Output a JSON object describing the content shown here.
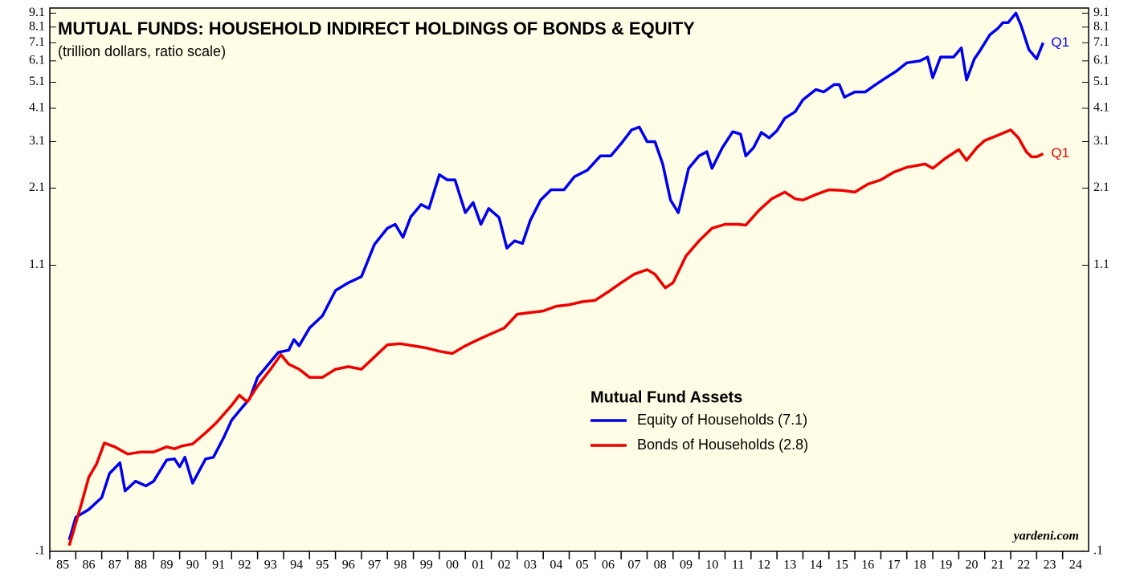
{
  "chart_data": {
    "type": "line",
    "title": "MUTUAL FUNDS: HOUSEHOLD INDIRECT HOLDINGS OF BONDS & EQUITY",
    "subtitle": "(trillion dollars, ratio scale)",
    "legend_title": "Mutual Fund Assets",
    "source": "yardeni.com",
    "log_scale": true,
    "xlim": [
      1985,
      2025
    ],
    "ylim": [
      0.1,
      9.5
    ],
    "yticks": [
      {
        "value": 0.1,
        "label": ".1"
      },
      1.1,
      2.1,
      3.1,
      4.1,
      5.1,
      6.1,
      7.1,
      8.1,
      9.1
    ],
    "xticks": [
      {
        "value": 1985,
        "label": "85"
      },
      {
        "value": 1986,
        "label": "86"
      },
      {
        "value": 1987,
        "label": "87"
      },
      {
        "value": 1988,
        "label": "88"
      },
      {
        "value": 1989,
        "label": "89"
      },
      {
        "value": 1990,
        "label": "90"
      },
      {
        "value": 1991,
        "label": "91"
      },
      {
        "value": 1992,
        "label": "92"
      },
      {
        "value": 1993,
        "label": "93"
      },
      {
        "value": 1994,
        "label": "94"
      },
      {
        "value": 1995,
        "label": "95"
      },
      {
        "value": 1996,
        "label": "96"
      },
      {
        "value": 1997,
        "label": "97"
      },
      {
        "value": 1998,
        "label": "98"
      },
      {
        "value": 1999,
        "label": "99"
      },
      {
        "value": 2000,
        "label": "00"
      },
      {
        "value": 2001,
        "label": "01"
      },
      {
        "value": 2002,
        "label": "02"
      },
      {
        "value": 2003,
        "label": "03"
      },
      {
        "value": 2004,
        "label": "04"
      },
      {
        "value": 2005,
        "label": "05"
      },
      {
        "value": 2006,
        "label": "06"
      },
      {
        "value": 2007,
        "label": "07"
      },
      {
        "value": 2008,
        "label": "08"
      },
      {
        "value": 2009,
        "label": "09"
      },
      {
        "value": 2010,
        "label": "10"
      },
      {
        "value": 2011,
        "label": "11"
      },
      {
        "value": 2012,
        "label": "12"
      },
      {
        "value": 2013,
        "label": "13"
      },
      {
        "value": 2014,
        "label": "14"
      },
      {
        "value": 2015,
        "label": "15"
      },
      {
        "value": 2016,
        "label": "16"
      },
      {
        "value": 2017,
        "label": "17"
      },
      {
        "value": 2018,
        "label": "18"
      },
      {
        "value": 2019,
        "label": "19"
      },
      {
        "value": 2020,
        "label": "20"
      },
      {
        "value": 2021,
        "label": "21"
      },
      {
        "value": 2022,
        "label": "22"
      },
      {
        "value": 2023,
        "label": "23"
      },
      {
        "value": 2024,
        "label": "24"
      }
    ],
    "series": [
      {
        "name": "Equity of Households (7.1)",
        "color": "#0000ee",
        "end_label": "Q1",
        "x": [
          1985.75,
          1986,
          1986.5,
          1987,
          1987.3,
          1987.7,
          1987.9,
          1988.3,
          1988.7,
          1989,
          1989.5,
          1989.8,
          1990,
          1990.2,
          1990.5,
          1991,
          1991.3,
          1991.7,
          1992,
          1992.3,
          1992.7,
          1993,
          1993.5,
          1993.8,
          1994.2,
          1994.4,
          1994.6,
          1995,
          1995.5,
          1996,
          1996.5,
          1997,
          1997.5,
          1998,
          1998.3,
          1998.6,
          1998.9,
          1999.3,
          1999.6,
          2000,
          2000.3,
          2000.6,
          2001,
          2001.3,
          2001.6,
          2001.9,
          2002.3,
          2002.6,
          2002.9,
          2003.2,
          2003.5,
          2003.9,
          2004.3,
          2004.8,
          2005.2,
          2005.7,
          2006.2,
          2006.6,
          2007,
          2007.4,
          2007.7,
          2008,
          2008.3,
          2008.6,
          2008.9,
          2009.2,
          2009.6,
          2010,
          2010.3,
          2010.5,
          2010.9,
          2011.3,
          2011.6,
          2011.8,
          2012.1,
          2012.4,
          2012.7,
          2013,
          2013.3,
          2013.7,
          2014,
          2014.5,
          2014.8,
          2015.2,
          2015.4,
          2015.6,
          2016,
          2016.4,
          2016.8,
          2017.2,
          2017.6,
          2018,
          2018.5,
          2018.8,
          2019,
          2019.3,
          2019.6,
          2019.8,
          2020.1,
          2020.3,
          2020.6,
          2020.8,
          2021.2,
          2021.5,
          2021.7,
          2021.9,
          2022.2,
          2022.4,
          2022.7,
          2023,
          2023.25
        ],
        "values": [
          0.11,
          0.133,
          0.142,
          0.157,
          0.192,
          0.21,
          0.166,
          0.18,
          0.173,
          0.18,
          0.215,
          0.217,
          0.203,
          0.22,
          0.177,
          0.217,
          0.22,
          0.26,
          0.3,
          0.325,
          0.36,
          0.43,
          0.49,
          0.53,
          0.54,
          0.59,
          0.56,
          0.65,
          0.72,
          0.89,
          0.95,
          1,
          1.31,
          1.5,
          1.55,
          1.39,
          1.65,
          1.83,
          1.77,
          2.35,
          2.25,
          2.25,
          1.71,
          1.86,
          1.55,
          1.77,
          1.64,
          1.27,
          1.35,
          1.32,
          1.6,
          1.9,
          2.07,
          2.07,
          2.31,
          2.44,
          2.75,
          2.75,
          3.05,
          3.42,
          3.5,
          3.1,
          3.1,
          2.57,
          1.9,
          1.71,
          2.48,
          2.75,
          2.85,
          2.48,
          2.95,
          3.37,
          3.3,
          2.75,
          2.95,
          3.35,
          3.2,
          3.4,
          3.77,
          3.98,
          4.4,
          4.8,
          4.7,
          5,
          5,
          4.5,
          4.7,
          4.7,
          5,
          5.3,
          5.6,
          6,
          6.1,
          6.3,
          5.3,
          6.3,
          6.3,
          6.3,
          6.8,
          5.2,
          6.2,
          6.6,
          7.6,
          8,
          8.4,
          8.4,
          9.1,
          8.2,
          6.7,
          6.2,
          7.1
        ]
      },
      {
        "name": "Bonds of Households (2.8)",
        "color": "#ee0000",
        "end_label": "Q1",
        "x": [
          1985.75,
          1986.2,
          1986.5,
          1986.8,
          1987.1,
          1987.5,
          1988,
          1988.5,
          1989,
          1989.5,
          1989.8,
          1990.1,
          1990.5,
          1991,
          1991.4,
          1992,
          1992.3,
          1992.6,
          1993,
          1993.5,
          1993.9,
          1994.2,
          1994.6,
          1995,
          1995.5,
          1996,
          1996.5,
          1997,
          1997.5,
          1998,
          1998.5,
          1999,
          1999.5,
          2000,
          2000.5,
          2001,
          2001.5,
          2002,
          2002.5,
          2003,
          2003.5,
          2004,
          2004.5,
          2005,
          2005.5,
          2006,
          2006.5,
          2007,
          2007.5,
          2008,
          2008.3,
          2008.7,
          2009,
          2009.5,
          2010,
          2010.5,
          2011,
          2011.5,
          2011.8,
          2012.3,
          2012.8,
          2013.3,
          2013.7,
          2014,
          2014.5,
          2015,
          2015.5,
          2016,
          2016.5,
          2017,
          2017.5,
          2018,
          2018.7,
          2019,
          2019.5,
          2020,
          2020.3,
          2020.7,
          2021,
          2021.5,
          2022,
          2022.3,
          2022.6,
          2022.8,
          2023,
          2023.25
        ],
        "values": [
          0.105,
          0.147,
          0.186,
          0.208,
          0.248,
          0.24,
          0.226,
          0.23,
          0.23,
          0.24,
          0.236,
          0.242,
          0.246,
          0.27,
          0.293,
          0.34,
          0.37,
          0.35,
          0.4,
          0.46,
          0.52,
          0.48,
          0.46,
          0.43,
          0.43,
          0.46,
          0.47,
          0.46,
          0.51,
          0.565,
          0.57,
          0.56,
          0.55,
          0.535,
          0.525,
          0.56,
          0.59,
          0.62,
          0.65,
          0.73,
          0.74,
          0.75,
          0.78,
          0.79,
          0.81,
          0.82,
          0.88,
          0.95,
          1.02,
          1.06,
          1.02,
          0.91,
          0.95,
          1.19,
          1.35,
          1.5,
          1.55,
          1.55,
          1.54,
          1.74,
          1.92,
          2.03,
          1.92,
          1.9,
          1.99,
          2.07,
          2.06,
          2.03,
          2.17,
          2.25,
          2.4,
          2.5,
          2.57,
          2.48,
          2.7,
          2.9,
          2.65,
          2.95,
          3.13,
          3.27,
          3.42,
          3.2,
          2.85,
          2.73,
          2.73,
          2.8
        ]
      }
    ]
  }
}
